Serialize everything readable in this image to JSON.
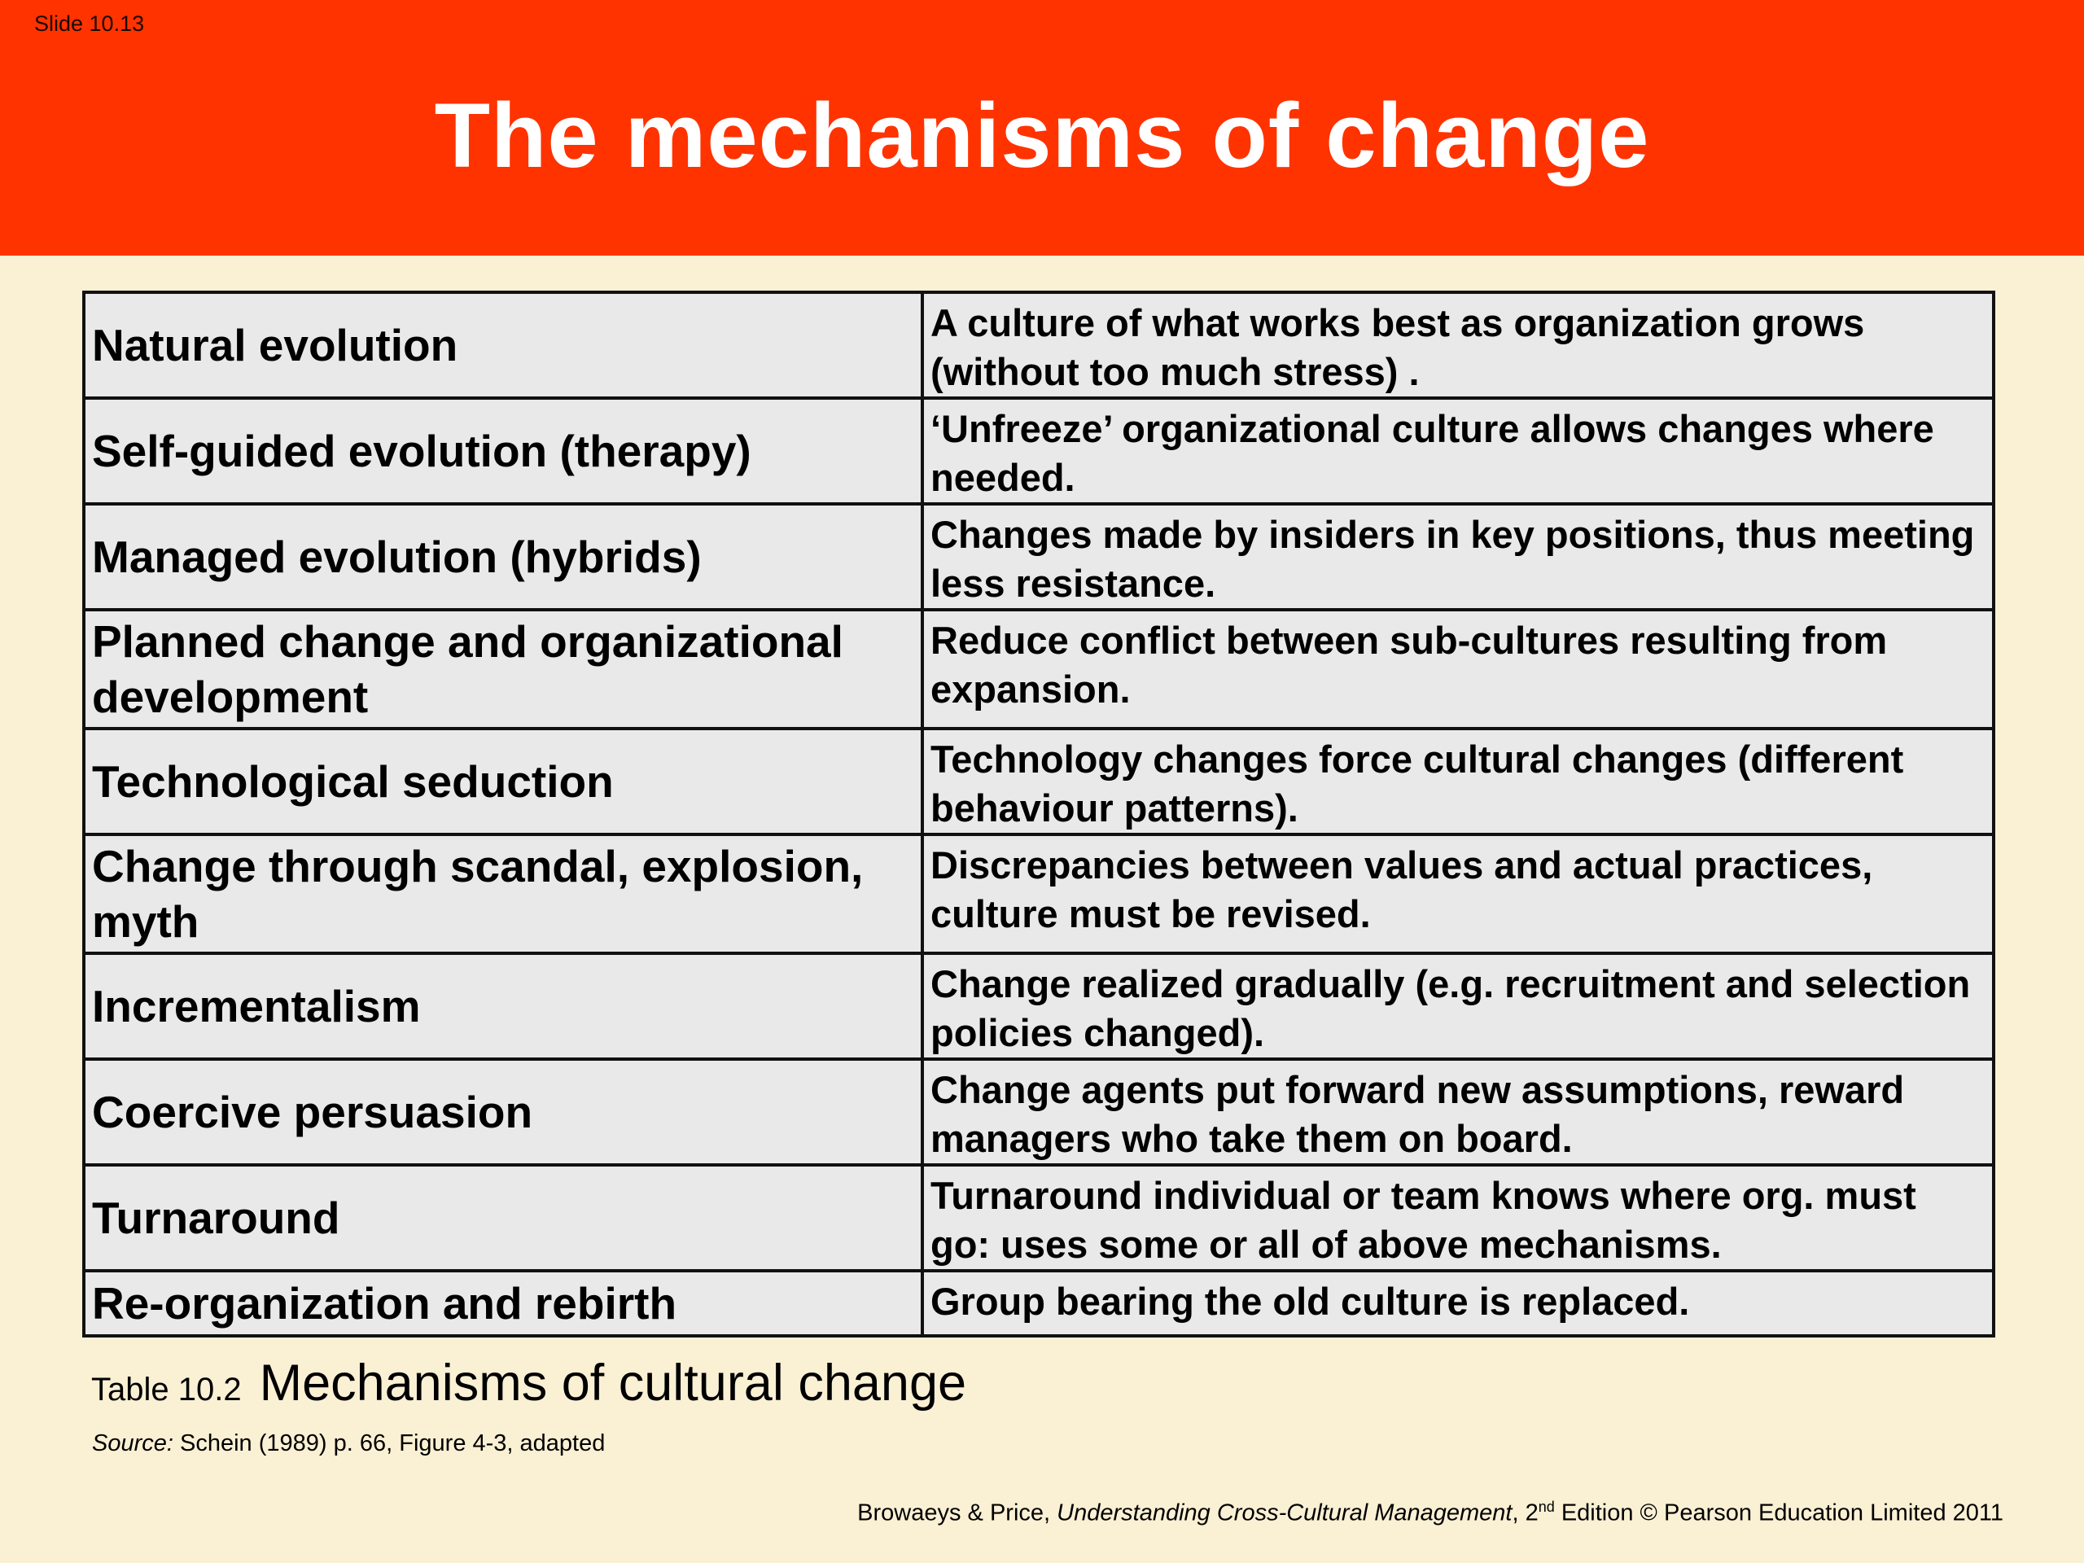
{
  "slide_number": "Slide 10.13",
  "title": "The mechanisms of change",
  "table": {
    "rows": [
      {
        "mechanism": "Natural evolution",
        "description": "A culture of what works best as organization grows (without too much stress) ."
      },
      {
        "mechanism": "Self-guided evolution (therapy)",
        "description": "‘Unfreeze’ organizational culture allows changes where needed."
      },
      {
        "mechanism": "Managed evolution (hybrids)",
        "description": "Changes made by insiders in key positions, thus meeting less resistance."
      },
      {
        "mechanism": "Planned change and organizational development",
        "description": "Reduce conflict between sub-cultures resulting from expansion."
      },
      {
        "mechanism": "Technological seduction",
        "description": "Technology changes force cultural changes (different behaviour patterns)."
      },
      {
        "mechanism": "Change through scandal, explosion, myth",
        "description": "Discrepancies between values and actual practices, culture must be revised."
      },
      {
        "mechanism": "Incrementalism",
        "description": "Change realized gradually (e.g. recruitment and selection policies changed)."
      },
      {
        "mechanism": "Coercive persuasion",
        "description": "Change agents put forward new assumptions, reward managers who take them on board."
      },
      {
        "mechanism": "Turnaround",
        "description": "Turnaround individual or team knows where org. must go: uses some or all of above mechanisms."
      },
      {
        "mechanism": "Re-organization and rebirth",
        "description": "Group bearing the old culture is replaced."
      }
    ]
  },
  "caption": {
    "label": "Table 10.2",
    "text": "Mechanisms of cultural change"
  },
  "source": {
    "label": "Source:",
    "text": "Schein (1989)  p. 66, Figure 4-3, adapted"
  },
  "credit": {
    "authors": "Browaeys & Price,",
    "book": "Understanding Cross-Cultural Management",
    "edition_number": ", 2",
    "edition_suffix": "nd",
    "rest": " Edition © Pearson Education Limited 2011"
  },
  "colors": {
    "header": "#ff3300",
    "background": "#faf0d4",
    "table_cell": "#e9e9e9",
    "title_text": "#ffffff"
  }
}
